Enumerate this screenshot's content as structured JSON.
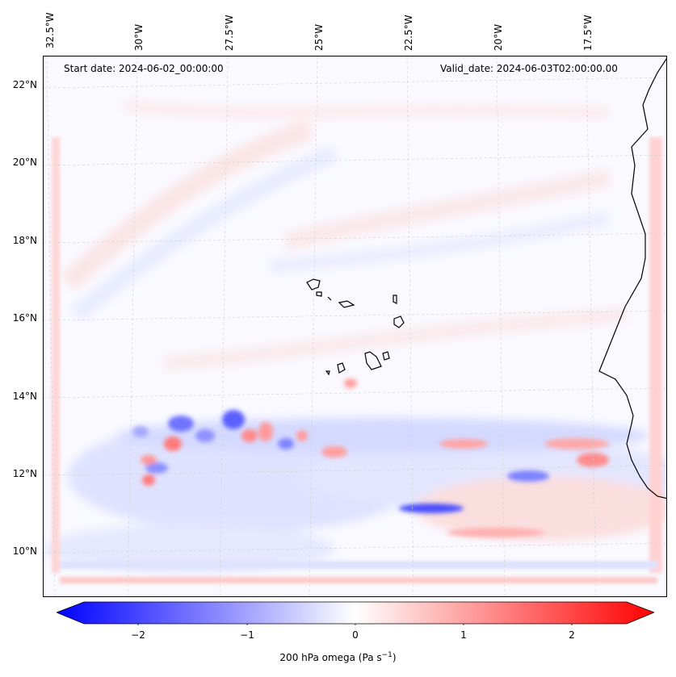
{
  "annotations": {
    "start_date": "Start date: 2024-06-02_00:00:00",
    "valid_date": "Valid_date: 2024-06-03T02:00:00.00"
  },
  "axes": {
    "lon_ticks": [
      "32.5°W",
      "30°W",
      "27.5°W",
      "25°W",
      "22.5°W",
      "20°W",
      "17.5°W"
    ],
    "lat_ticks": [
      "22°N",
      "20°N",
      "18°N",
      "16°N",
      "14°N",
      "12°N",
      "10°N"
    ]
  },
  "colorbar": {
    "ticks": [
      "−2",
      "−1",
      "0",
      "1",
      "2"
    ],
    "label": "200 hPa omega (Pa s",
    "label_exp": "−1",
    "label_end": ")",
    "range": [
      -2.6,
      2.6
    ],
    "colors": {
      "negative": "#0000ff",
      "zero": "#ffffff",
      "positive": "#ff0000"
    }
  },
  "map": {
    "field": "200 hPa omega",
    "projection": "lat-lon",
    "extent": {
      "lon": [
        -33,
        -15.5
      ],
      "lat": [
        8.9,
        22.8
      ]
    }
  }
}
